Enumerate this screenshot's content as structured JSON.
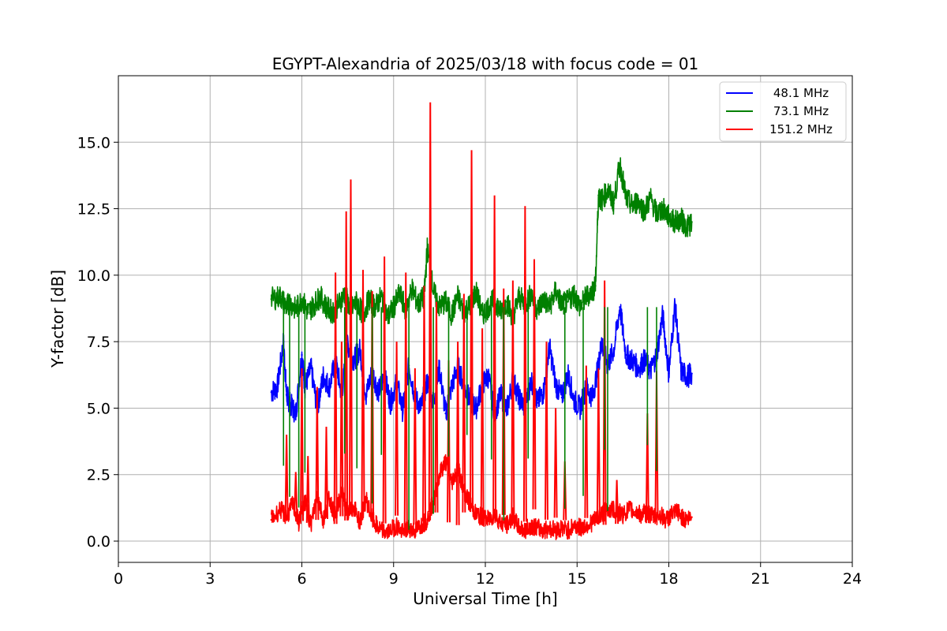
{
  "chart_data": {
    "type": "line",
    "title": "EGYPT-Alexandria of 2025/03/18 with focus code = 01",
    "xlabel": "Universal Time [h]",
    "ylabel": "Y-factor [dB]",
    "xlim": [
      0,
      24
    ],
    "ylim": [
      -0.8,
      17.5
    ],
    "xticks": [
      0,
      3,
      6,
      9,
      12,
      15,
      18,
      21,
      24
    ],
    "xtick_labels": [
      "0",
      "3",
      "6",
      "9",
      "12",
      "15",
      "18",
      "21",
      "24"
    ],
    "yticks": [
      0,
      2.5,
      5,
      7.5,
      10,
      12.5,
      15
    ],
    "ytick_labels": [
      "0.0",
      "2.5",
      "5.0",
      "7.5",
      "10.0",
      "12.5",
      "15.0"
    ],
    "grid": true,
    "legend_position": "top-right",
    "series": [
      {
        "name": "48.1 MHz",
        "color": "#0000ff",
        "x": [
          5.0,
          5.2,
          5.4,
          5.5,
          5.6,
          5.8,
          6.0,
          6.1,
          6.3,
          6.5,
          6.7,
          6.9,
          7.1,
          7.3,
          7.5,
          7.7,
          7.9,
          8.1,
          8.3,
          8.5,
          8.7,
          8.9,
          9.1,
          9.3,
          9.5,
          9.7,
          9.9,
          10.1,
          10.3,
          10.5,
          10.7,
          10.9,
          11.1,
          11.3,
          11.5,
          11.7,
          11.9,
          12.1,
          12.3,
          12.5,
          12.7,
          12.9,
          13.1,
          13.3,
          13.5,
          13.7,
          13.9,
          14.1,
          14.3,
          14.5,
          14.7,
          14.9,
          15.1,
          15.3,
          15.5,
          15.7,
          15.8,
          16.0,
          16.2,
          16.4,
          16.6,
          16.8,
          17.0,
          17.2,
          17.4,
          17.6,
          17.8,
          18.0,
          18.2,
          18.4,
          18.6,
          18.75
        ],
        "y": [
          5.6,
          5.8,
          7.5,
          5.5,
          5.2,
          4.8,
          7.0,
          5.8,
          6.5,
          5.0,
          6.2,
          5.8,
          6.8,
          5.5,
          7.4,
          6.8,
          7.2,
          5.5,
          6.4,
          5.6,
          6.2,
          5.2,
          6.0,
          4.9,
          6.6,
          5.4,
          5.0,
          6.0,
          5.2,
          6.5,
          4.8,
          5.8,
          6.6,
          5.8,
          5.3,
          5.0,
          5.9,
          6.2,
          4.8,
          5.5,
          4.9,
          6.1,
          5.4,
          5.0,
          6.1,
          5.2,
          5.6,
          7.3,
          5.9,
          5.4,
          6.3,
          5.3,
          5.0,
          5.8,
          5.4,
          6.6,
          7.5,
          6.6,
          7.2,
          8.8,
          7.0,
          6.8,
          6.5,
          6.8,
          6.4,
          7.0,
          8.5,
          6.3,
          8.9,
          6.4,
          6.2,
          6.3
        ]
      },
      {
        "name": "73.1 MHz",
        "color": "#008000",
        "x": [
          5.0,
          5.3,
          5.5,
          5.6,
          5.8,
          6.0,
          6.2,
          6.4,
          6.6,
          6.8,
          7.0,
          7.2,
          7.4,
          7.6,
          7.8,
          8.0,
          8.2,
          8.4,
          8.6,
          8.8,
          9.0,
          9.2,
          9.4,
          9.6,
          9.8,
          10.0,
          10.1,
          10.3,
          10.5,
          10.7,
          10.9,
          11.1,
          11.3,
          11.5,
          11.7,
          11.9,
          12.1,
          12.3,
          12.5,
          12.7,
          12.9,
          13.1,
          13.3,
          13.5,
          13.7,
          13.9,
          14.1,
          14.3,
          14.5,
          14.7,
          14.9,
          15.1,
          15.3,
          15.5,
          15.6,
          15.7,
          15.8,
          16.0,
          16.2,
          16.4,
          16.6,
          16.8,
          17.0,
          17.2,
          17.4,
          17.6,
          17.8,
          18.0,
          18.2,
          18.4,
          18.6,
          18.75
        ],
        "y": [
          9.1,
          9.2,
          8.8,
          9.0,
          8.7,
          9.1,
          8.6,
          8.9,
          9.2,
          8.8,
          8.6,
          8.9,
          9.3,
          8.7,
          9.0,
          8.5,
          9.1,
          8.8,
          9.2,
          8.4,
          8.8,
          9.3,
          8.7,
          9.5,
          8.9,
          9.2,
          11.0,
          9.4,
          8.8,
          9.0,
          8.5,
          9.2,
          8.6,
          8.9,
          9.4,
          8.5,
          8.8,
          9.1,
          8.6,
          9.0,
          8.4,
          9.2,
          8.9,
          9.3,
          8.7,
          9.1,
          8.8,
          9.4,
          8.9,
          9.0,
          9.3,
          8.8,
          9.2,
          9.4,
          9.6,
          13.0,
          12.8,
          13.2,
          12.7,
          14.2,
          12.9,
          12.6,
          12.8,
          12.4,
          12.9,
          12.3,
          12.5,
          12.2,
          12.0,
          12.1,
          11.8,
          12.0
        ]
      },
      {
        "name": "151.2 MHz",
        "color": "#ff0000",
        "x": [
          5.0,
          5.3,
          5.5,
          5.7,
          5.9,
          6.1,
          6.3,
          6.5,
          6.7,
          6.9,
          7.1,
          7.3,
          7.5,
          7.7,
          7.9,
          8.1,
          8.3,
          8.5,
          8.7,
          8.9,
          9.1,
          9.3,
          9.5,
          9.7,
          9.9,
          10.1,
          10.3,
          10.5,
          10.7,
          10.9,
          11.1,
          11.3,
          11.5,
          11.7,
          11.9,
          12.1,
          12.3,
          12.5,
          12.7,
          12.9,
          13.1,
          13.3,
          13.5,
          13.7,
          13.9,
          14.1,
          14.3,
          14.5,
          14.7,
          14.9,
          15.1,
          15.3,
          15.5,
          15.7,
          15.9,
          16.1,
          16.3,
          16.5,
          16.7,
          16.9,
          17.1,
          17.3,
          17.5,
          17.7,
          17.9,
          18.1,
          18.3,
          18.5,
          18.75
        ],
        "y": [
          0.8,
          1.2,
          0.9,
          1.4,
          0.7,
          1.5,
          0.6,
          1.8,
          0.8,
          1.6,
          0.9,
          1.9,
          1.0,
          1.3,
          0.7,
          1.6,
          0.8,
          0.5,
          0.3,
          0.4,
          0.6,
          0.3,
          0.5,
          0.4,
          0.6,
          0.8,
          1.5,
          2.5,
          3.0,
          2.2,
          2.8,
          1.9,
          1.4,
          1.0,
          0.9,
          0.8,
          1.0,
          0.7,
          0.6,
          0.9,
          0.5,
          0.4,
          0.6,
          0.5,
          0.4,
          0.5,
          0.4,
          0.5,
          0.4,
          0.6,
          0.5,
          0.6,
          0.7,
          0.9,
          1.1,
          1.2,
          1.1,
          1.0,
          1.2,
          1.1,
          1.0,
          1.1,
          0.9,
          1.0,
          0.8,
          1.0,
          1.1,
          0.8,
          0.9
        ],
        "spikes": [
          {
            "x": 5.5,
            "y": 4.0
          },
          {
            "x": 5.8,
            "y": 2.6
          },
          {
            "x": 6.0,
            "y": 6.5
          },
          {
            "x": 6.2,
            "y": 3.2
          },
          {
            "x": 6.5,
            "y": 5.8
          },
          {
            "x": 6.8,
            "y": 4.3
          },
          {
            "x": 7.1,
            "y": 10.1
          },
          {
            "x": 7.3,
            "y": 7.5
          },
          {
            "x": 7.45,
            "y": 12.4
          },
          {
            "x": 7.6,
            "y": 13.6
          },
          {
            "x": 8.0,
            "y": 10.2
          },
          {
            "x": 8.3,
            "y": 9.4
          },
          {
            "x": 8.7,
            "y": 10.7
          },
          {
            "x": 9.1,
            "y": 7.5
          },
          {
            "x": 9.4,
            "y": 10.1
          },
          {
            "x": 9.7,
            "y": 6.5
          },
          {
            "x": 10.0,
            "y": 9.6
          },
          {
            "x": 10.2,
            "y": 16.5
          },
          {
            "x": 10.4,
            "y": 9.0
          },
          {
            "x": 10.8,
            "y": 6.8
          },
          {
            "x": 11.1,
            "y": 7.5
          },
          {
            "x": 11.3,
            "y": 9.3
          },
          {
            "x": 11.55,
            "y": 14.7
          },
          {
            "x": 11.9,
            "y": 8.0
          },
          {
            "x": 12.3,
            "y": 13.0
          },
          {
            "x": 12.6,
            "y": 9.5
          },
          {
            "x": 12.9,
            "y": 9.8
          },
          {
            "x": 13.3,
            "y": 12.6
          },
          {
            "x": 13.6,
            "y": 10.6
          },
          {
            "x": 14.0,
            "y": 7.5
          },
          {
            "x": 14.3,
            "y": 5.0
          },
          {
            "x": 14.6,
            "y": 3.0
          },
          {
            "x": 15.3,
            "y": 6.6
          },
          {
            "x": 15.7,
            "y": 6.5
          },
          {
            "x": 15.9,
            "y": 9.8
          },
          {
            "x": 16.3,
            "y": 2.3
          },
          {
            "x": 17.3,
            "y": 4.8
          },
          {
            "x": 17.6,
            "y": 6.4
          }
        ]
      }
    ]
  }
}
